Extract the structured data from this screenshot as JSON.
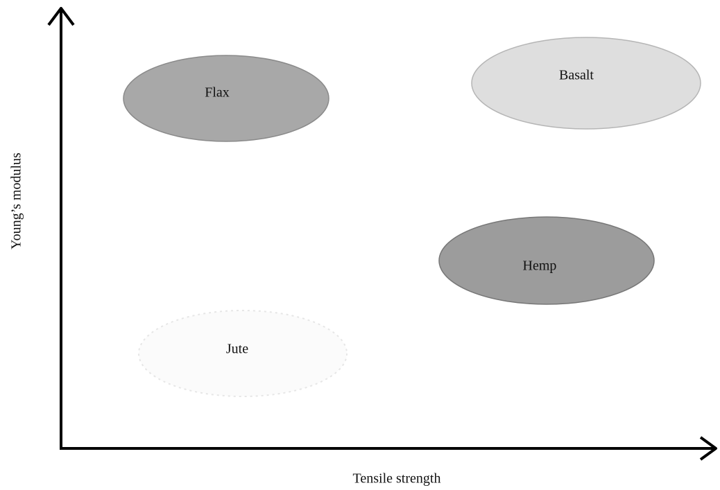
{
  "x_axis": {
    "label": "Tensile strength"
  },
  "y_axis": {
    "label": "Young’s  modulus"
  },
  "nodes": [
    {
      "label": "Flax"
    },
    {
      "label": "Basalt"
    },
    {
      "label": "Hemp"
    },
    {
      "label": "Jute"
    }
  ]
}
